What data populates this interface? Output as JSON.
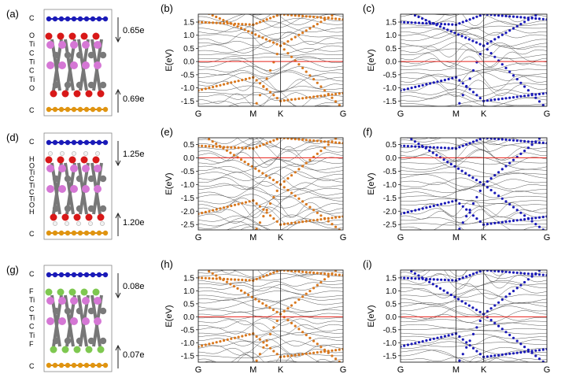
{
  "figure": {
    "rows": [
      {
        "structure": {
          "panel": "(a)",
          "layers": [
            "C",
            "O",
            "Ti",
            "C",
            "Ti",
            "C",
            "Ti",
            "O",
            "C"
          ],
          "charge_top": "0.65e",
          "charge_bottom": "0.69e"
        },
        "bands": [
          {
            "panel": "(b)",
            "series_color": "#d9781e"
          },
          {
            "panel": "(c)",
            "series_color": "#1a1ab8"
          }
        ],
        "ylim": [
          -1.7,
          1.8
        ],
        "yticks": [
          "-1.5",
          "-1.0",
          "-0.5",
          "0.0",
          "0.5",
          "1.0",
          "1.5"
        ]
      },
      {
        "structure": {
          "panel": "(d)",
          "layers": [
            "C",
            "H",
            "O",
            "Ti",
            "C",
            "Ti",
            "C",
            "Ti",
            "O",
            "H",
            "C"
          ],
          "charge_top": "1.25e",
          "charge_bottom": "1.20e"
        },
        "bands": [
          {
            "panel": "(e)",
            "series_color": "#d9781e"
          },
          {
            "panel": "(f)",
            "series_color": "#1a1ab8"
          }
        ],
        "ylim": [
          -2.7,
          0.75
        ],
        "yticks": [
          "-2.5",
          "-2.0",
          "-1.5",
          "-1.0",
          "-0.5",
          "0.0",
          "0.5"
        ]
      },
      {
        "structure": {
          "panel": "(g)",
          "layers": [
            "C",
            "F",
            "Ti",
            "C",
            "Ti",
            "C",
            "Ti",
            "F",
            "C"
          ],
          "charge_top": "0.08e",
          "charge_bottom": "0.07e"
        },
        "bands": [
          {
            "panel": "(h)",
            "series_color": "#d9781e"
          },
          {
            "panel": "(i)",
            "series_color": "#1a1ab8"
          }
        ],
        "ylim": [
          -1.75,
          1.8
        ],
        "yticks": [
          "-1.5",
          "-1.0",
          "-0.5",
          "0.0",
          "0.5",
          "1.0",
          "1.5"
        ]
      }
    ]
  },
  "chart_data": {
    "type": "line",
    "ylabel": "E(eV)",
    "x_kpoints": [
      "G",
      "M",
      "K",
      "G"
    ],
    "fermi_level": 0.0,
    "fermi_color": "#e8201a",
    "background_band_color": "#555555",
    "highlighted_series_colors": [
      "#d9781e",
      "#1a1ab8"
    ],
    "panels": [
      "(b)",
      "(c)",
      "(e)",
      "(f)",
      "(h)",
      "(i)"
    ]
  }
}
